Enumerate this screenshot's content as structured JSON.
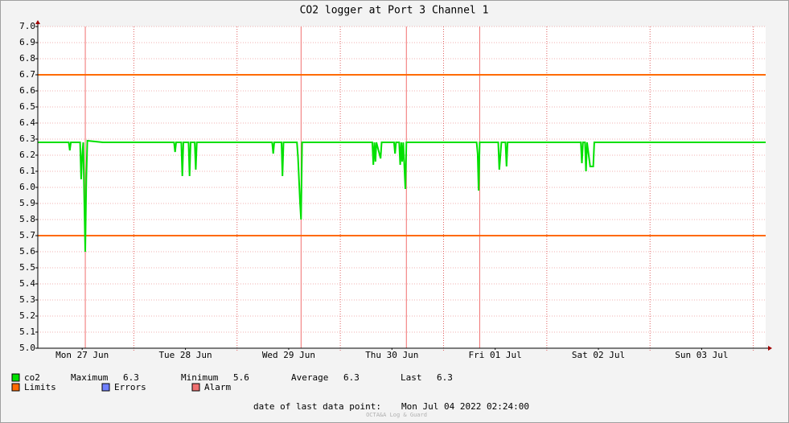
{
  "chart_data": {
    "type": "line",
    "title": "CO2 logger at Port 3 Channel 1",
    "x": [
      0.07,
      0.37,
      0.38,
      0.39,
      0.48,
      0.49,
      0.5,
      0.51,
      0.52,
      0.53,
      0.54,
      0.55,
      0.7,
      1.39,
      1.4,
      1.41,
      1.46,
      1.47,
      1.48,
      1.53,
      1.54,
      1.55,
      1.59,
      1.6,
      1.61,
      2.34,
      2.35,
      2.36,
      2.43,
      2.44,
      2.45,
      2.58,
      2.59,
      2.61,
      2.62,
      2.63,
      3.31,
      3.32,
      3.33,
      3.34,
      3.35,
      3.39,
      3.4,
      3.52,
      3.53,
      3.54,
      3.57,
      3.58,
      3.59,
      3.6,
      3.61,
      3.63,
      3.64,
      4.32,
      4.33,
      4.34,
      4.35,
      4.53,
      4.54,
      4.56,
      4.6,
      4.61,
      4.62,
      5.33,
      5.34,
      5.35,
      5.37,
      5.38,
      5.39,
      5.42,
      5.45,
      5.46,
      7.12
    ],
    "series": [
      {
        "name": "co2",
        "color": "#00e000",
        "values": [
          6.28,
          6.28,
          6.23,
          6.28,
          6.28,
          6.05,
          6.2,
          6.28,
          5.92,
          5.6,
          6.05,
          6.29,
          6.28,
          6.28,
          6.22,
          6.28,
          6.28,
          6.07,
          6.28,
          6.28,
          6.07,
          6.28,
          6.28,
          6.11,
          6.28,
          6.28,
          6.21,
          6.28,
          6.28,
          6.07,
          6.28,
          6.28,
          6.19,
          5.9,
          5.8,
          6.28,
          6.28,
          6.14,
          6.28,
          6.16,
          6.28,
          6.18,
          6.28,
          6.28,
          6.21,
          6.28,
          6.28,
          6.14,
          6.28,
          6.16,
          6.28,
          5.99,
          6.28,
          6.28,
          6.21,
          5.98,
          6.28,
          6.28,
          6.11,
          6.28,
          6.28,
          6.13,
          6.28,
          6.28,
          6.15,
          6.28,
          6.28,
          6.1,
          6.28,
          6.13,
          6.13,
          6.28,
          6.28
        ]
      }
    ],
    "xlim": [
      0.07,
      7.12
    ],
    "xticks": [
      {
        "value": 0.5,
        "label": "Mon 27 Jun"
      },
      {
        "value": 1.5,
        "label": "Tue 28 Jun"
      },
      {
        "value": 2.5,
        "label": "Wed 29 Jun"
      },
      {
        "value": 3.5,
        "label": "Thu 30 Jun"
      },
      {
        "value": 4.5,
        "label": "Fri 01 Jul"
      },
      {
        "value": 5.5,
        "label": "Sat 02 Jul"
      },
      {
        "value": 6.5,
        "label": "Sun 03 Jul"
      }
    ],
    "ylim": [
      5,
      7
    ],
    "yticks": [
      {
        "value": 5,
        "label": "5.0"
      },
      5.1,
      5.2,
      5.3,
      5.4,
      5.5,
      5.6,
      5.7,
      5.8,
      5.9,
      {
        "value": 6,
        "label": "6.0"
      },
      6.1,
      6.2,
      6.3,
      6.4,
      6.5,
      6.6,
      6.7,
      6.8,
      6.9,
      {
        "value": 7,
        "label": "7.0"
      }
    ],
    "grid": true,
    "limits": {
      "name": "Limits",
      "color": "#ff6a00",
      "values": [
        6.7,
        5.7
      ]
    },
    "errors": {
      "name": "Errors",
      "color": "#7080ff"
    },
    "alarms": {
      "name": "Alarm",
      "color": "#f07070",
      "x": [
        0.53,
        2.62,
        3.64,
        4.35
      ]
    },
    "stats": [
      {
        "label": "Maximum",
        "value": 6.3
      },
      {
        "label": "Minimum",
        "value": 5.6
      },
      {
        "label": "Average",
        "value": 6.3
      },
      {
        "label": "Last",
        "value": 6.3
      }
    ],
    "footer": {
      "label": "date of last data point:",
      "value": "Mon Jul 04 2022 02:24:00"
    },
    "watermark": "OCTA&A Log & Guard"
  }
}
